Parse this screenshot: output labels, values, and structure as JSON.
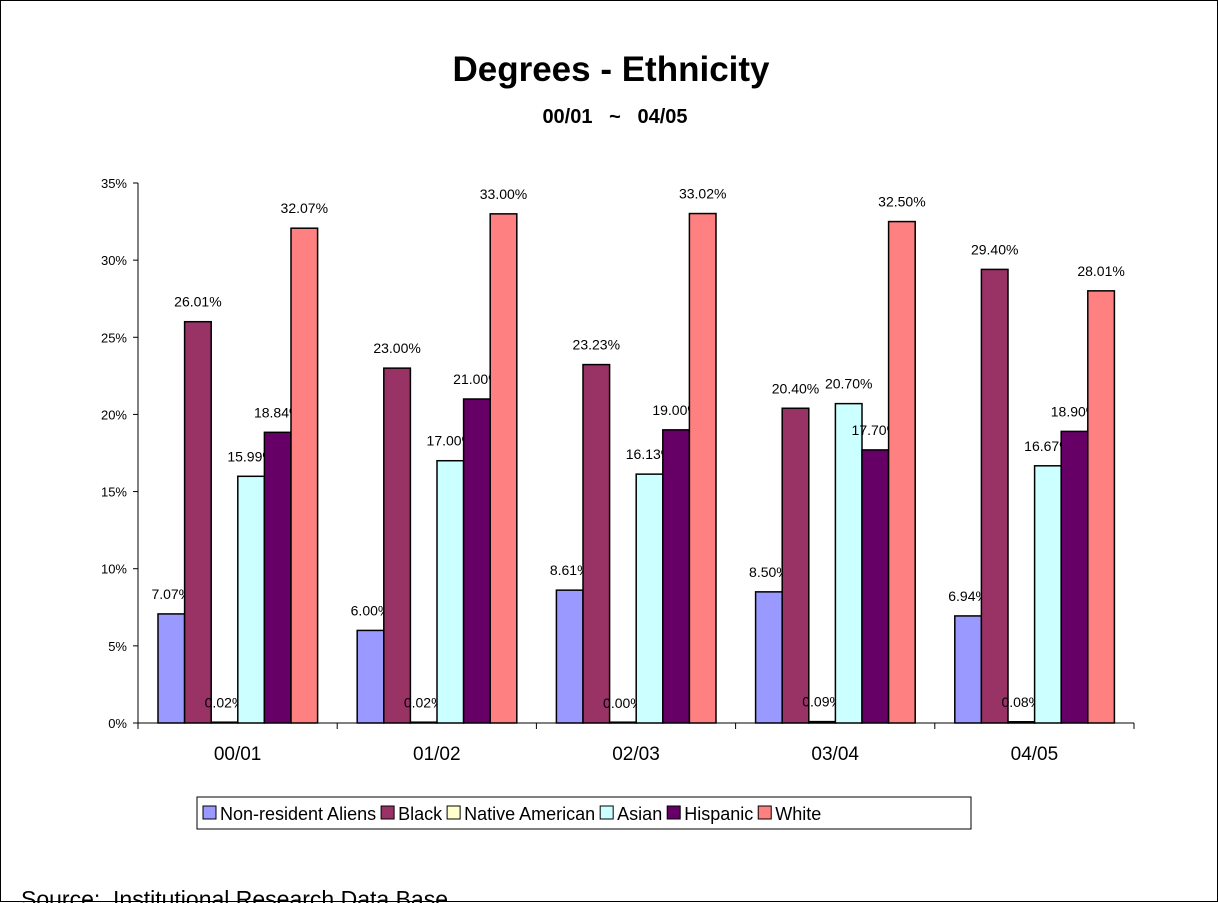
{
  "chart_data": {
    "type": "bar",
    "title": "Degrees - Ethnicity",
    "subtitle": "00/01   ~   04/05",
    "categories": [
      "00/01",
      "01/02",
      "02/03",
      "03/04",
      "04/05"
    ],
    "series": [
      {
        "name": "Non-resident Aliens",
        "color": "#9999FF",
        "values": [
          7.07,
          6.0,
          8.61,
          8.5,
          6.94
        ],
        "labels": [
          "7.07%",
          "6.00%",
          "8.61%",
          "8.50%",
          "6.94%"
        ]
      },
      {
        "name": "Black",
        "color": "#993366",
        "values": [
          26.01,
          23.0,
          23.23,
          20.4,
          29.4
        ],
        "labels": [
          "26.01%",
          "23.00%",
          "23.23%",
          "20.40%",
          "29.40%"
        ]
      },
      {
        "name": "Native American",
        "color": "#FFFFCC",
        "values": [
          0.02,
          0.02,
          0.0,
          0.09,
          0.08
        ],
        "labels": [
          "0.02%",
          "0.02%",
          "0.00%",
          "0.09%",
          "0.08%"
        ]
      },
      {
        "name": "Asian",
        "color": "#CCFFFF",
        "values": [
          15.99,
          17.0,
          16.13,
          20.7,
          16.67
        ],
        "labels": [
          "15.99%",
          "17.00%",
          "16.13%",
          "20.70%",
          "16.67%"
        ]
      },
      {
        "name": "Hispanic",
        "color": "#660066",
        "values": [
          18.84,
          21.0,
          19.0,
          17.7,
          18.9
        ],
        "labels": [
          "18.84%",
          "21.00%",
          "19.00%",
          "17.70%",
          "18.90%"
        ]
      },
      {
        "name": "White",
        "color": "#FF8080",
        "values": [
          32.07,
          33.0,
          33.02,
          32.5,
          28.01
        ],
        "labels": [
          "32.07%",
          "33.00%",
          "33.02%",
          "32.50%",
          "28.01%"
        ]
      }
    ],
    "yticks": [
      "0%",
      "5%",
      "10%",
      "15%",
      "20%",
      "25%",
      "30%",
      "35%"
    ],
    "ylim": [
      0,
      35
    ],
    "grid": false,
    "legend_position": "bottom",
    "source_note": "Source:  Institutional Research Data Base"
  }
}
